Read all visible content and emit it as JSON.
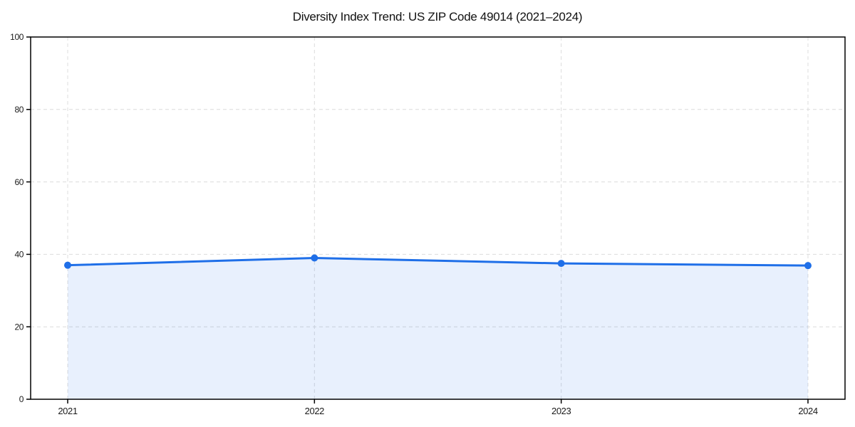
{
  "page": {
    "background_color": "#ffffff"
  },
  "chart_data": {
    "type": "area",
    "title": "Diversity Index Trend: US ZIP Code 49014 (2021–2024)",
    "categories": [
      "2021",
      "2022",
      "2023",
      "2024"
    ],
    "series": [
      {
        "name": "Diversity Index",
        "values": [
          37.0,
          39.0,
          37.5,
          36.9
        ]
      }
    ],
    "xlabel": "",
    "ylabel": "",
    "ylim": [
      0,
      100
    ],
    "yticks": [
      0,
      20,
      40,
      60,
      80,
      100
    ],
    "ytick_labels": [
      "0",
      "20",
      "40",
      "60",
      "80",
      "100"
    ],
    "grid": true,
    "grid_style": "dashed",
    "legend": false,
    "colors": {
      "line": "#1f6fe8",
      "marker": "#1f6fe8",
      "fill": "rgba(31, 111, 232, 0.10)",
      "grid": "#dcdcdc",
      "spine": "#000000",
      "text": "#1a1a1a"
    }
  }
}
